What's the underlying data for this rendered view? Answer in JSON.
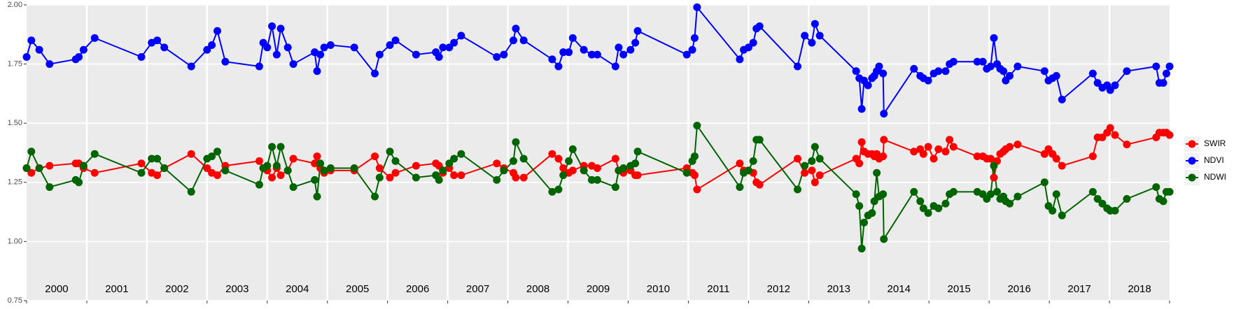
{
  "chart_data": {
    "type": "line",
    "x": [
      2000.0,
      2000.079,
      2000.211,
      2000.382,
      2000.816,
      2000.868,
      2000.947,
      2001.132,
      2001.908,
      2002.079,
      2002.171,
      2002.289,
      2002.737,
      2003.0,
      2003.079,
      2003.171,
      2003.303,
      2003.868,
      2003.934,
      2004.0,
      2004.079,
      2004.158,
      2004.224,
      2004.342,
      2004.434,
      2004.789,
      2004.829,
      2004.882,
      2004.947,
      2005.053,
      2005.447,
      2005.789,
      2005.868,
      2006.039,
      2006.132,
      2006.474,
      2006.803,
      2006.855,
      2006.921,
      2007.026,
      2007.105,
      2007.224,
      2007.816,
      2007.934,
      2008.092,
      2008.132,
      2008.263,
      2008.737,
      2008.842,
      2008.921,
      2009.013,
      2009.079,
      2009.263,
      2009.395,
      2009.487,
      2009.789,
      2009.842,
      2009.921,
      2010.039,
      2010.118,
      2010.158,
      2010.974,
      2011.066,
      2011.105,
      2011.145,
      2011.855,
      2011.921,
      2012.0,
      2012.079,
      2012.132,
      2012.184,
      2012.816,
      2012.934,
      2013.053,
      2013.105,
      2013.184,
      2013.789,
      2013.842,
      2013.882,
      2013.921,
      2013.987,
      2014.053,
      2014.092,
      2014.132,
      2014.171,
      2014.237,
      2014.25,
      2014.75,
      2014.855,
      2014.908,
      2014.987,
      2015.079,
      2015.158,
      2015.276,
      2015.342,
      2015.408,
      2015.803,
      2015.895,
      2015.961,
      2016.026,
      2016.079,
      2016.132,
      2016.184,
      2016.237,
      2016.276,
      2016.342,
      2016.474,
      2016.921,
      2016.987,
      2017.053,
      2017.118,
      2017.211,
      2017.724,
      2017.803,
      2017.882,
      2017.961,
      2018.013,
      2018.092,
      2018.289,
      2018.776,
      2018.829,
      2018.895,
      2018.947,
      2019.0
    ],
    "series": [
      {
        "name": "SWIR",
        "color": "#ff0000",
        "values": [
          1.31,
          1.29,
          1.31,
          1.32,
          1.33,
          1.33,
          1.31,
          1.29,
          1.33,
          1.29,
          1.28,
          1.31,
          1.37,
          1.31,
          1.29,
          1.28,
          1.32,
          1.34,
          1.31,
          1.3,
          1.27,
          1.31,
          1.28,
          1.3,
          1.35,
          1.33,
          1.36,
          1.31,
          1.29,
          1.3,
          1.3,
          1.36,
          1.31,
          1.27,
          1.29,
          1.32,
          1.33,
          1.32,
          1.29,
          1.31,
          1.28,
          1.28,
          1.33,
          1.31,
          1.29,
          1.27,
          1.27,
          1.37,
          1.35,
          1.31,
          1.29,
          1.3,
          1.32,
          1.32,
          1.31,
          1.35,
          1.3,
          1.29,
          1.3,
          1.28,
          1.28,
          1.31,
          1.29,
          1.28,
          1.22,
          1.33,
          1.3,
          1.3,
          1.29,
          1.25,
          1.24,
          1.35,
          1.29,
          1.3,
          1.25,
          1.28,
          1.35,
          1.33,
          1.42,
          1.38,
          1.37,
          1.37,
          1.36,
          1.37,
          1.35,
          1.36,
          1.43,
          1.38,
          1.39,
          1.37,
          1.4,
          1.35,
          1.39,
          1.38,
          1.43,
          1.4,
          1.36,
          1.36,
          1.35,
          1.35,
          1.27,
          1.34,
          1.37,
          1.38,
          1.39,
          1.4,
          1.41,
          1.37,
          1.39,
          1.37,
          1.35,
          1.32,
          1.36,
          1.44,
          1.44,
          1.46,
          1.48,
          1.45,
          1.41,
          1.44,
          1.46,
          1.46,
          1.46,
          1.45
        ]
      },
      {
        "name": "NDVI",
        "color": "#0000ff",
        "values": [
          1.78,
          1.85,
          1.81,
          1.75,
          1.77,
          1.78,
          1.81,
          1.86,
          1.78,
          1.84,
          1.85,
          1.82,
          1.74,
          1.81,
          1.83,
          1.89,
          1.76,
          1.74,
          1.84,
          1.82,
          1.91,
          1.79,
          1.9,
          1.82,
          1.75,
          1.8,
          1.72,
          1.79,
          1.82,
          1.83,
          1.82,
          1.71,
          1.79,
          1.83,
          1.85,
          1.79,
          1.8,
          1.78,
          1.82,
          1.82,
          1.84,
          1.87,
          1.78,
          1.79,
          1.85,
          1.9,
          1.85,
          1.77,
          1.74,
          1.8,
          1.8,
          1.86,
          1.81,
          1.79,
          1.79,
          1.74,
          1.82,
          1.79,
          1.81,
          1.84,
          1.89,
          1.79,
          1.81,
          1.86,
          1.99,
          1.77,
          1.81,
          1.82,
          1.84,
          1.9,
          1.91,
          1.74,
          1.87,
          1.84,
          1.92,
          1.87,
          1.72,
          1.69,
          1.56,
          1.68,
          1.66,
          1.69,
          1.7,
          1.72,
          1.74,
          1.71,
          1.54,
          1.73,
          1.7,
          1.69,
          1.68,
          1.71,
          1.72,
          1.72,
          1.75,
          1.76,
          1.76,
          1.76,
          1.73,
          1.74,
          1.86,
          1.75,
          1.73,
          1.72,
          1.68,
          1.7,
          1.74,
          1.72,
          1.68,
          1.69,
          1.7,
          1.6,
          1.71,
          1.67,
          1.65,
          1.66,
          1.64,
          1.66,
          1.72,
          1.74,
          1.67,
          1.67,
          1.71,
          1.74
        ]
      },
      {
        "name": "NDWI",
        "color": "#006400",
        "values": [
          1.31,
          1.38,
          1.31,
          1.23,
          1.26,
          1.25,
          1.32,
          1.37,
          1.29,
          1.35,
          1.35,
          1.31,
          1.21,
          1.35,
          1.36,
          1.38,
          1.3,
          1.24,
          1.31,
          1.32,
          1.4,
          1.32,
          1.4,
          1.3,
          1.23,
          1.26,
          1.19,
          1.33,
          1.3,
          1.31,
          1.31,
          1.19,
          1.27,
          1.38,
          1.34,
          1.27,
          1.28,
          1.26,
          1.3,
          1.33,
          1.35,
          1.37,
          1.26,
          1.3,
          1.34,
          1.42,
          1.35,
          1.21,
          1.22,
          1.28,
          1.34,
          1.39,
          1.3,
          1.26,
          1.26,
          1.23,
          1.3,
          1.31,
          1.32,
          1.33,
          1.38,
          1.29,
          1.34,
          1.36,
          1.49,
          1.23,
          1.29,
          1.3,
          1.34,
          1.43,
          1.43,
          1.22,
          1.32,
          1.34,
          1.4,
          1.35,
          1.2,
          1.15,
          0.97,
          1.08,
          1.11,
          1.12,
          1.17,
          1.29,
          1.19,
          1.2,
          1.01,
          1.21,
          1.17,
          1.14,
          1.12,
          1.15,
          1.14,
          1.16,
          1.2,
          1.21,
          1.21,
          1.2,
          1.18,
          1.2,
          1.32,
          1.21,
          1.18,
          1.19,
          1.17,
          1.16,
          1.19,
          1.25,
          1.15,
          1.13,
          1.2,
          1.11,
          1.21,
          1.18,
          1.16,
          1.14,
          1.13,
          1.13,
          1.18,
          1.23,
          1.18,
          1.17,
          1.21,
          1.21
        ]
      }
    ],
    "xlim": [
      2000,
      2019
    ],
    "xticks": [
      2000,
      2001,
      2002,
      2003,
      2004,
      2005,
      2006,
      2007,
      2008,
      2009,
      2010,
      2011,
      2012,
      2013,
      2014,
      2015,
      2016,
      2017,
      2018,
      2019
    ],
    "year_labels": [
      {
        "value": 2000.5,
        "label": "2000"
      },
      {
        "value": 2001.5,
        "label": "2001"
      },
      {
        "value": 2002.5,
        "label": "2002"
      },
      {
        "value": 2003.5,
        "label": "2003"
      },
      {
        "value": 2004.5,
        "label": "2004"
      },
      {
        "value": 2005.5,
        "label": "2005"
      },
      {
        "value": 2006.5,
        "label": "2006"
      },
      {
        "value": 2007.5,
        "label": "2007"
      },
      {
        "value": 2008.5,
        "label": "2008"
      },
      {
        "value": 2009.5,
        "label": "2009"
      },
      {
        "value": 2010.5,
        "label": "2010"
      },
      {
        "value": 2011.5,
        "label": "2011"
      },
      {
        "value": 2012.5,
        "label": "2012"
      },
      {
        "value": 2013.5,
        "label": "2013"
      },
      {
        "value": 2014.5,
        "label": "2014"
      },
      {
        "value": 2015.5,
        "label": "2015"
      },
      {
        "value": 2016.5,
        "label": "2016"
      },
      {
        "value": 2017.5,
        "label": "2017"
      },
      {
        "value": 2018.5,
        "label": "2018"
      }
    ],
    "ylim": [
      0.75,
      2.0
    ],
    "yticks": [
      0.75,
      {
        "value": 1.0,
        "label": "1.00"
      },
      1.25,
      {
        "value": 1.5,
        "label": "1.50"
      },
      1.75,
      {
        "value": 2.0,
        "label": "2.00"
      }
    ],
    "grid": true,
    "legend": "right"
  }
}
